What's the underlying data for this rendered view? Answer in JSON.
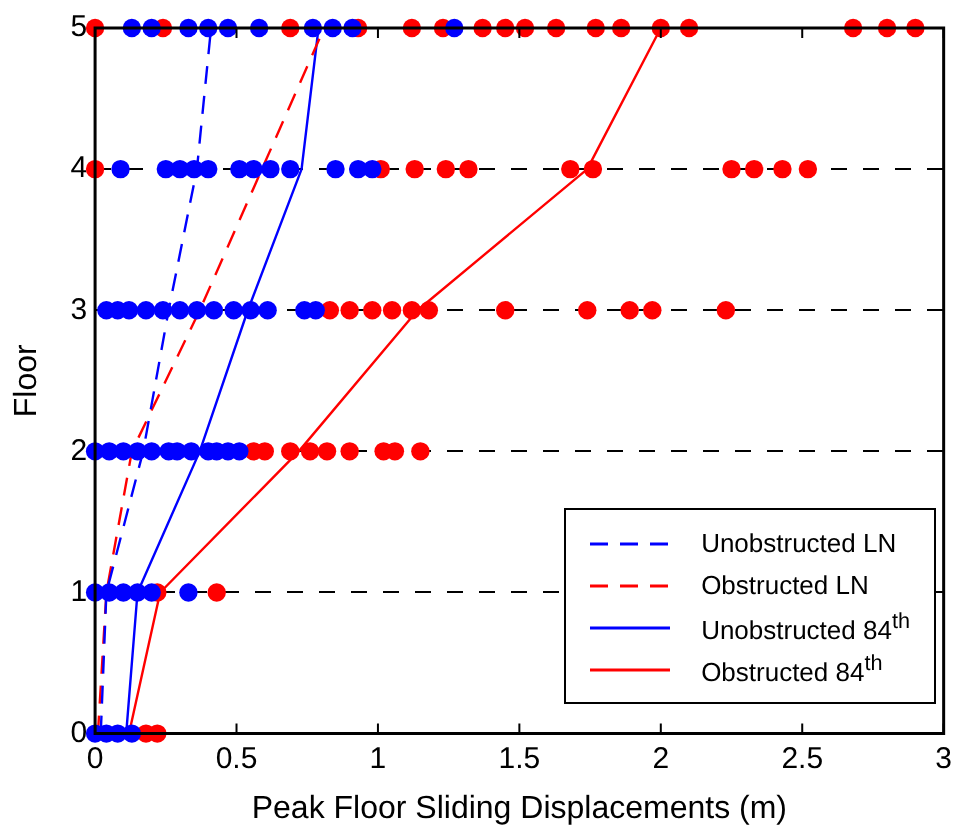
{
  "chart_data": {
    "type": "scatter",
    "xlabel": "Peak Floor Sliding Displacements (m)",
    "ylabel": "Floor",
    "xlim": [
      0,
      3
    ],
    "ylim": [
      0,
      5
    ],
    "xticks": [
      0,
      0.5,
      1,
      1.5,
      2,
      2.5,
      3
    ],
    "yticks": [
      0,
      1,
      2,
      3,
      4,
      5
    ],
    "grid": "y",
    "legend": "bottom right",
    "series": [
      {
        "marker": "circle",
        "color": "#0000ff",
        "x": [
          0.13,
          0.2,
          0.33,
          0.4,
          0.47,
          0.58,
          0.77,
          0.84,
          0.91,
          1.27,
          0.09,
          0.25,
          0.3,
          0.35,
          0.4,
          0.51,
          0.56,
          0.62,
          0.69,
          0.85,
          0.93,
          0.98,
          0.04,
          0.08,
          0.12,
          0.18,
          0.24,
          0.3,
          0.36,
          0.42,
          0.49,
          0.55,
          0.61,
          0.74,
          0.78,
          0,
          0.05,
          0.1,
          0.15,
          0.2,
          0.26,
          0.29,
          0.34,
          0.4,
          0.43,
          0.47,
          0.51,
          0,
          0.05,
          0.1,
          0.15,
          0.2,
          0.33,
          0,
          0.04,
          0.08,
          0.13
        ],
        "values": [
          5,
          5,
          5,
          5,
          5,
          5,
          5,
          5,
          5,
          5,
          4,
          4,
          4,
          4,
          4,
          4,
          4,
          4,
          4,
          4,
          4,
          4,
          3,
          3,
          3,
          3,
          3,
          3,
          3,
          3,
          3,
          3,
          3,
          3,
          3,
          2,
          2,
          2,
          2,
          2,
          2,
          2,
          2,
          2,
          2,
          2,
          2,
          1,
          1,
          1,
          1,
          1,
          1,
          0,
          0,
          0,
          0
        ]
      },
      {
        "marker": "circle",
        "color": "#ff0000",
        "x": [
          0,
          0.24,
          0.69,
          0.93,
          1.12,
          1.23,
          1.37,
          1.45,
          1.52,
          1.63,
          1.77,
          1.86,
          2.0,
          2.1,
          2.68,
          2.8,
          2.9,
          0,
          1.01,
          1.13,
          1.24,
          1.32,
          1.68,
          1.76,
          2.25,
          2.33,
          2.43,
          2.52,
          0.83,
          0.9,
          0.98,
          1.05,
          1.12,
          1.18,
          1.45,
          1.74,
          1.89,
          1.97,
          2.23,
          0.56,
          0.6,
          0.69,
          0.76,
          0.82,
          0.9,
          1.02,
          1.06,
          1.15,
          0.22,
          0.43,
          0.18,
          0.22
        ],
        "values": [
          5,
          5,
          5,
          5,
          5,
          5,
          5,
          5,
          5,
          5,
          5,
          5,
          5,
          5,
          5,
          5,
          5,
          4,
          4,
          4,
          4,
          4,
          4,
          4,
          4,
          4,
          4,
          4,
          3,
          3,
          3,
          3,
          3,
          3,
          3,
          3,
          3,
          3,
          3,
          2,
          2,
          2,
          2,
          2,
          2,
          2,
          2,
          2,
          1,
          1,
          0,
          0
        ]
      },
      {
        "name": "Unobstructed LN",
        "type": "line",
        "marker": "none",
        "line_style": "dashed",
        "color": "#0000ff",
        "x": [
          0.02,
          0.04,
          0.17,
          0.26,
          0.36,
          0.41
        ],
        "values": [
          0,
          1,
          2,
          3,
          4,
          5
        ]
      },
      {
        "name": "Obstructed LN",
        "type": "line",
        "marker": "none",
        "line_style": "dashed",
        "color": "#ff0000",
        "x": [
          0.01,
          0.04,
          0.13,
          0.37,
          0.59,
          0.81
        ],
        "values": [
          0,
          1,
          2,
          3,
          4,
          5
        ]
      },
      {
        "name": "Unobstructed 84$^{th}$",
        "type": "line",
        "marker": "none",
        "line_style": "solid",
        "color": "#0000ff",
        "x": [
          0.11,
          0.15,
          0.37,
          0.54,
          0.73,
          0.79
        ],
        "values": [
          0,
          1,
          2,
          3,
          4,
          5
        ]
      },
      {
        "name": "Obstructed 84$^{th}$",
        "type": "line",
        "marker": "none",
        "line_style": "solid",
        "color": "#ff0000",
        "x": [
          0.12,
          0.23,
          0.72,
          1.14,
          1.74,
          2.0
        ],
        "values": [
          0,
          1,
          2,
          3,
          4,
          5
        ]
      }
    ]
  }
}
